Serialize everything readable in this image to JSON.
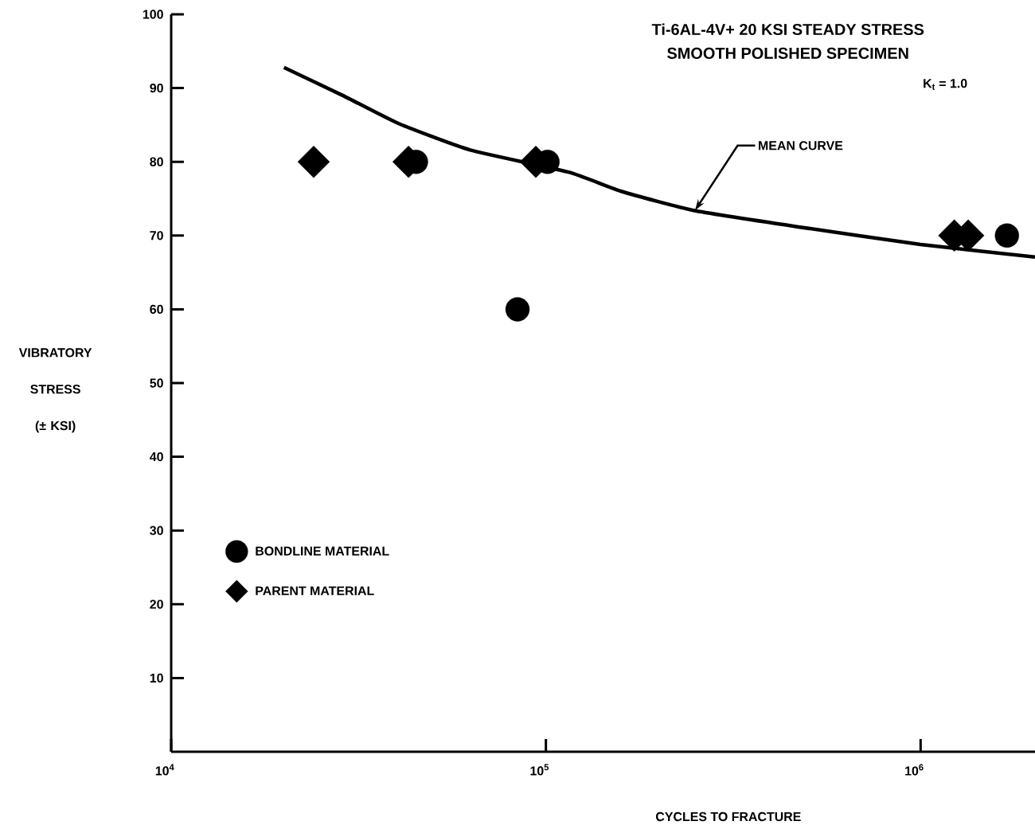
{
  "chart_data": {
    "type": "scatter",
    "title": "Ti-6AL-4V+ 20 KSI  STEADY STRESS",
    "subtitle": "SMOOTH POLISHED SPECIMEN",
    "xlabel": "CYCLES TO FRACTURE",
    "ylabel": "VIBRATORY STRESS (± KSI)",
    "annotations": [
      "K$_{t}$ = 1.0",
      {
        "text": "MEAN CURVE",
        "x": 250000,
        "y": 73.4
      }
    ],
    "log": "x",
    "xlim": [
      10000,
      2020000
    ],
    "xticks": [
      {
        "value": 10000,
        "label": "10$^{4}$"
      },
      {
        "value": 100000,
        "label": "10$^{5}$"
      },
      {
        "value": 1000000,
        "label": "10$^{6}$"
      }
    ],
    "ylim": [
      0,
      100
    ],
    "yticks": [
      10,
      20,
      30,
      40,
      50,
      60,
      70,
      80,
      90,
      100
    ],
    "grid": false,
    "legend": "left",
    "series": [
      {
        "name": "BONDLINE MATERIAL",
        "marker": "circle",
        "color": "#000000",
        "x": [
          45000,
          84000,
          101000,
          1700000
        ],
        "values": [
          80,
          60,
          80,
          70
        ]
      },
      {
        "name": "PARENT MATERIAL",
        "marker": "diamond",
        "color": "#000000",
        "x": [
          24000,
          43000,
          94000,
          1230000,
          1340000
        ],
        "values": [
          80,
          80,
          80,
          70,
          70
        ]
      },
      {
        "type": "line",
        "marker": "none",
        "line_style": "solid",
        "color": "#000000",
        "x": [
          20000,
          28700,
          40400,
          62800,
          115000,
          159000,
          248000,
          468000,
          1000000,
          2020000
        ],
        "values": [
          92.8,
          89.0,
          85.2,
          81.6,
          78.6,
          76.0,
          73.4,
          71.2,
          68.8,
          67.1
        ]
      }
    ]
  }
}
